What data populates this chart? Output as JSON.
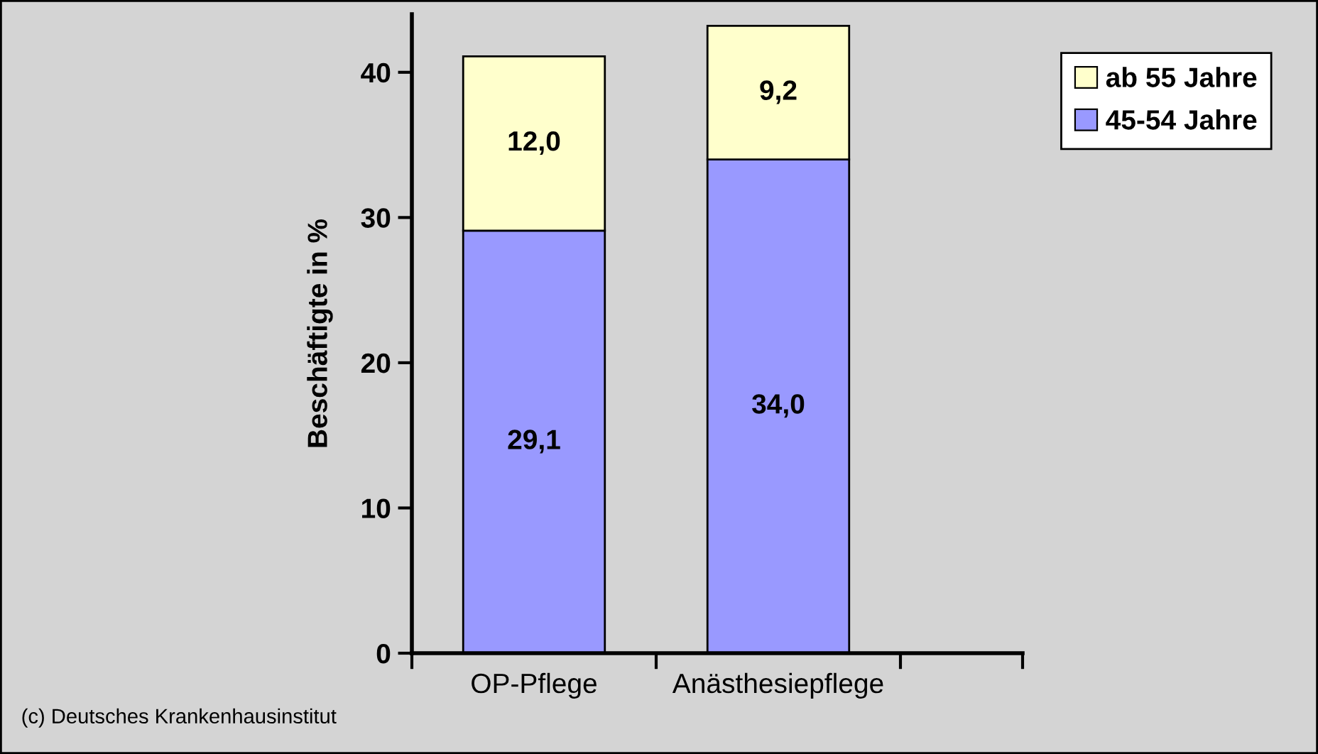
{
  "chart_data": {
    "type": "bar",
    "stacked": true,
    "categories": [
      "OP-Pflege",
      "Anästhesiepflege"
    ],
    "series": [
      {
        "name": "45-54 Jahre",
        "color": "#9999ff",
        "values": [
          29.1,
          34.0
        ],
        "value_labels": [
          "29,1",
          "34,0"
        ]
      },
      {
        "name": "ab 55 Jahre",
        "color": "#ffffcc",
        "values": [
          12.0,
          9.2
        ],
        "value_labels": [
          "12,0",
          "9,2"
        ]
      }
    ],
    "ylabel": "Beschäftigte in %",
    "ylim": [
      0,
      44
    ],
    "yticks": [
      0,
      10,
      20,
      30,
      40
    ],
    "legend": "top right",
    "grid": false,
    "annotations": [
      "(c) Deutsches Krankenhausinstitut"
    ]
  }
}
